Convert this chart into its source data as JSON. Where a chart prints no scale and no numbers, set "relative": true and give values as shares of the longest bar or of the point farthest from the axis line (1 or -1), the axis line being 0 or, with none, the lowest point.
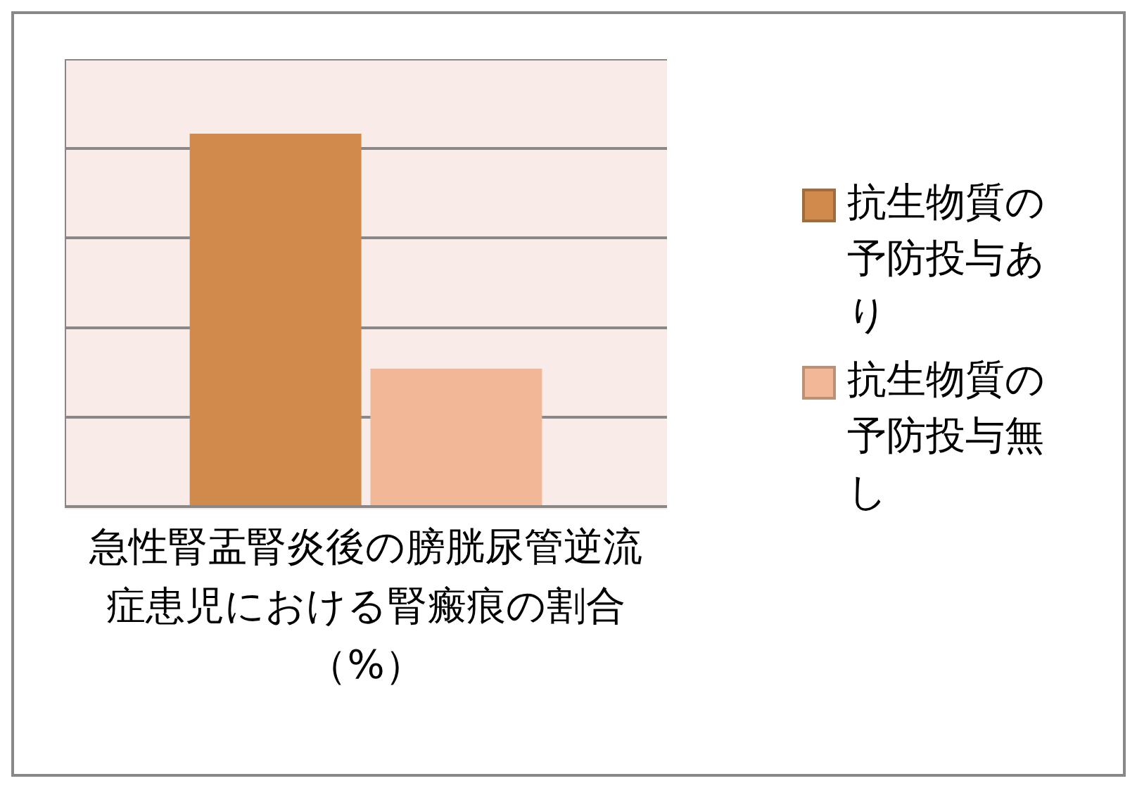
{
  "chart_data": {
    "type": "bar",
    "relative": true,
    "categories": [
      null
    ],
    "annotations": [
      "急性腎盂腎炎後の膀胱尿管逆流症患児における腎瘢痕の割合（%）"
    ],
    "series": [
      {
        "name": "抗生物質の予防投与あり",
        "color": "#cf8a4c",
        "values": [
          1
        ]
      },
      {
        "name": "抗生物質の予防投与無し",
        "color": "#f0b896",
        "values": [
          0.37
        ]
      }
    ],
    "grid": "y",
    "legend": "right"
  }
}
